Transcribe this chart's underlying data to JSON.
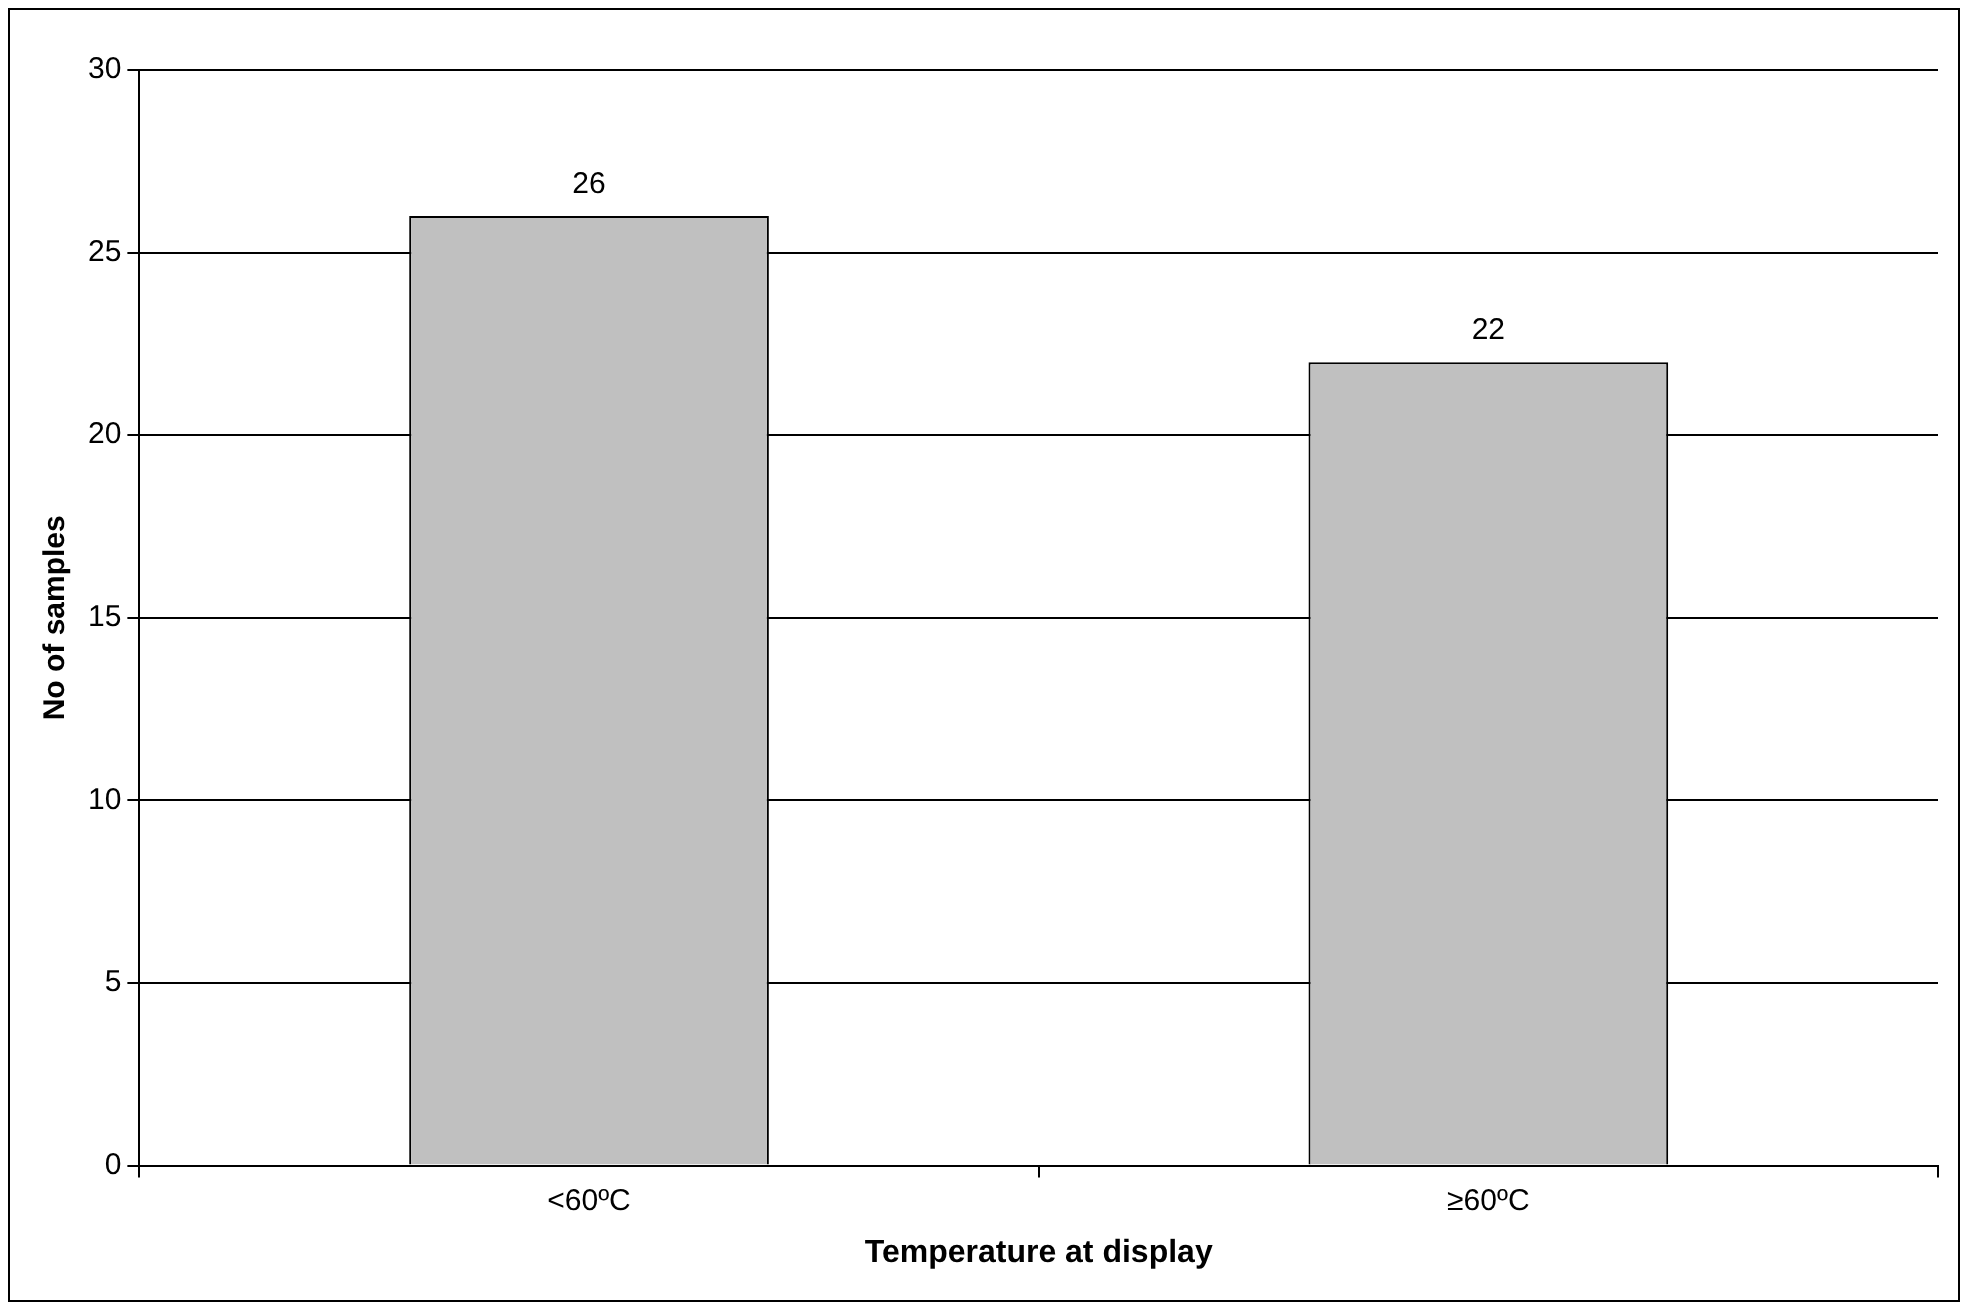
{
  "chart_data": {
    "type": "bar",
    "xlabel": "Temperature at display",
    "ylabel": "No of samples",
    "categories": [
      "<60ºC",
      "≥60ºC"
    ],
    "values": [
      26,
      22
    ],
    "color": "#c0c0c0",
    "ylim": [
      0,
      30
    ],
    "yticks": [
      0,
      5,
      10,
      15,
      20,
      25,
      30
    ],
    "grid": "y",
    "legend": false,
    "data_labels": true
  }
}
